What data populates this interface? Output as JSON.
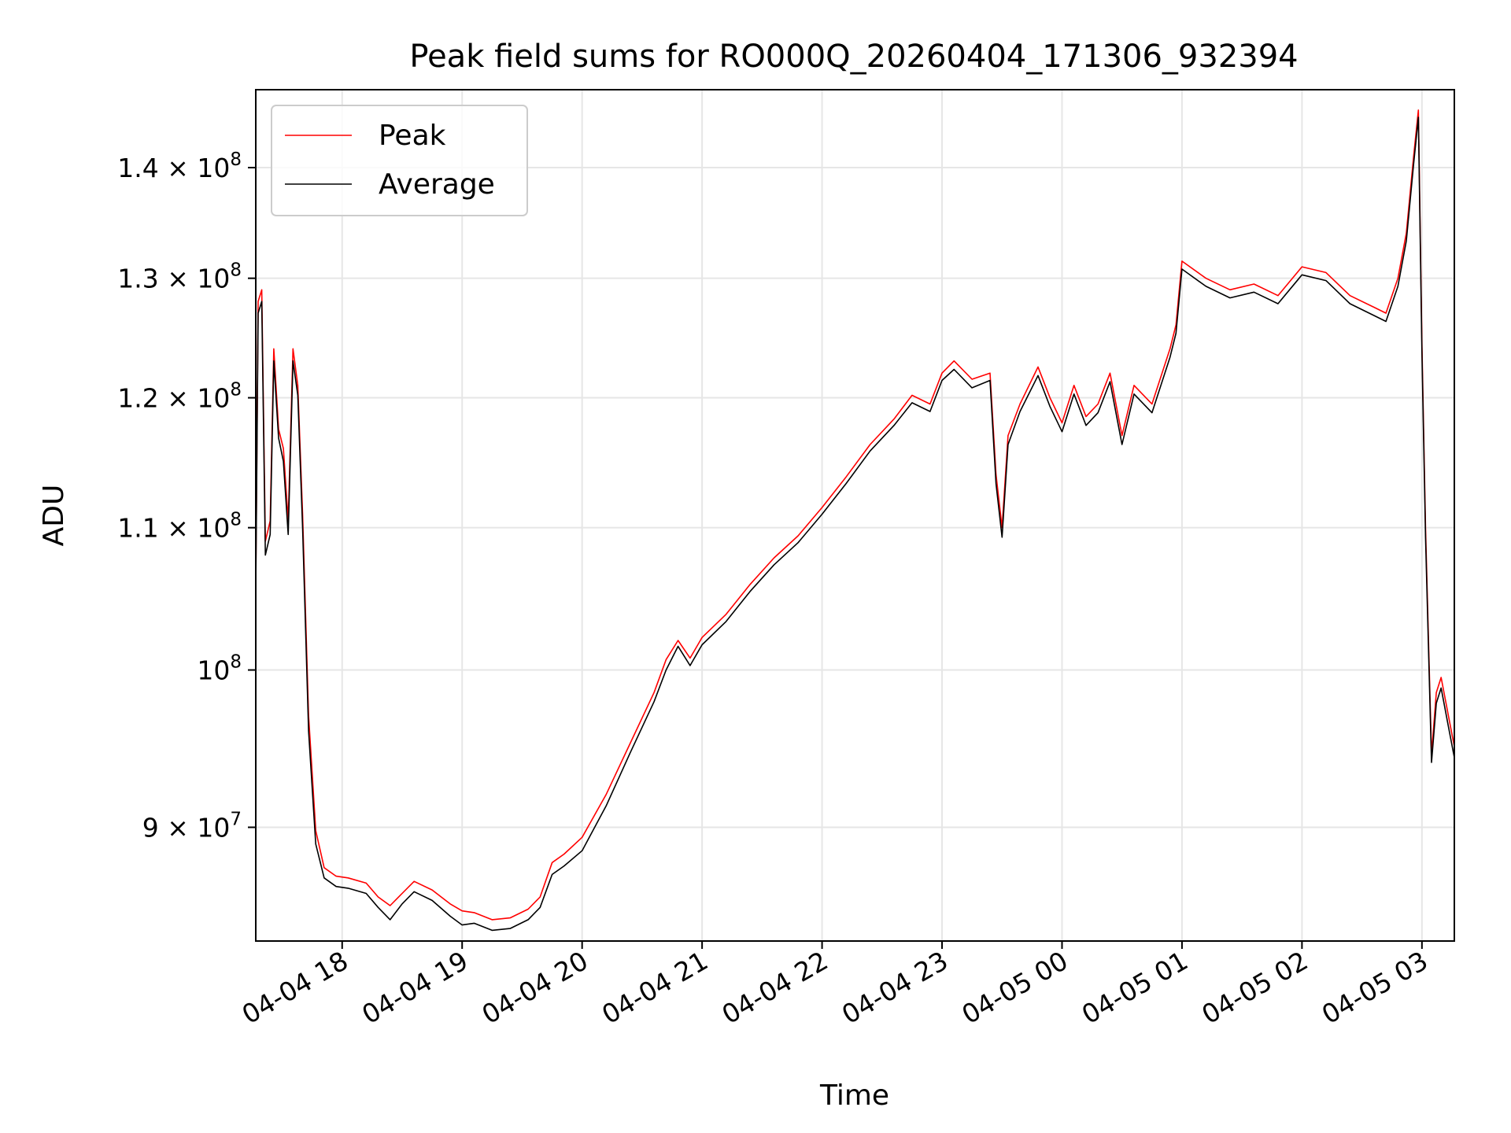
{
  "chart_data": {
    "type": "line",
    "title": "Peak field sums for RO000Q_20260404_171306_932394",
    "xlabel": "Time",
    "ylabel": "ADU",
    "yscale": "log",
    "grid": true,
    "legend_position": "upper-left",
    "x_units": "hours since 2026-04-04 00:00",
    "xlim": [
      17.28,
      27.27
    ],
    "ylim": [
      83400000,
      147500000
    ],
    "x_ticks": [
      {
        "value": 18,
        "label": "04-04 18"
      },
      {
        "value": 19,
        "label": "04-04 19"
      },
      {
        "value": 20,
        "label": "04-04 20"
      },
      {
        "value": 21,
        "label": "04-04 21"
      },
      {
        "value": 22,
        "label": "04-04 22"
      },
      {
        "value": 23,
        "label": "04-04 23"
      },
      {
        "value": 24,
        "label": "04-05 00"
      },
      {
        "value": 25,
        "label": "04-05 01"
      },
      {
        "value": 26,
        "label": "04-05 02"
      },
      {
        "value": 27,
        "label": "04-05 03"
      }
    ],
    "y_ticks": [
      {
        "value": 90000000,
        "mantissa": "9",
        "exponent": "7",
        "label": "9 × 10^7"
      },
      {
        "value": 100000000,
        "mantissa": "",
        "exponent": "8",
        "label": "10^8"
      },
      {
        "value": 110000000,
        "mantissa": "1.1",
        "exponent": "8",
        "label": "1.1 × 10^8"
      },
      {
        "value": 120000000,
        "mantissa": "1.2",
        "exponent": "8",
        "label": "1.2 × 10^8"
      },
      {
        "value": 130000000,
        "mantissa": "1.3",
        "exponent": "8",
        "label": "1.3 × 10^8"
      },
      {
        "value": 140000000,
        "mantissa": "1.4",
        "exponent": "8",
        "label": "1.4 × 10^8"
      }
    ],
    "series": [
      {
        "name": "Peak",
        "color": "#ff0000",
        "x": [
          17.28,
          17.3,
          17.33,
          17.36,
          17.4,
          17.43,
          17.47,
          17.51,
          17.55,
          17.59,
          17.63,
          17.67,
          17.72,
          17.78,
          17.85,
          17.95,
          18.05,
          18.2,
          18.3,
          18.4,
          18.5,
          18.6,
          18.75,
          18.9,
          19.0,
          19.1,
          19.25,
          19.4,
          19.55,
          19.65,
          19.75,
          19.85,
          20.0,
          20.2,
          20.4,
          20.6,
          20.7,
          20.8,
          20.9,
          21.0,
          21.2,
          21.4,
          21.6,
          21.8,
          22.0,
          22.2,
          22.4,
          22.6,
          22.75,
          22.9,
          23.0,
          23.1,
          23.25,
          23.4,
          23.45,
          23.5,
          23.55,
          23.65,
          23.8,
          23.9,
          24.0,
          24.1,
          24.2,
          24.3,
          24.4,
          24.5,
          24.6,
          24.75,
          24.9,
          24.95,
          25.0,
          25.2,
          25.4,
          25.6,
          25.8,
          26.0,
          26.2,
          26.4,
          26.6,
          26.7,
          26.8,
          26.87,
          26.93,
          26.97,
          27.0,
          27.03,
          27.08,
          27.12,
          27.16,
          27.22,
          27.27
        ],
        "values": [
          106000000,
          128000000,
          129000000,
          109000000,
          110500000,
          124000000,
          117500000,
          116000000,
          110500000,
          124000000,
          121000000,
          111000000,
          97000000,
          89800000,
          87600000,
          87100000,
          87000000,
          86700000,
          85900000,
          85400000,
          86100000,
          86800000,
          86300000,
          85500000,
          85100000,
          85000000,
          84600000,
          84700000,
          85200000,
          85900000,
          87900000,
          88400000,
          89400000,
          92000000,
          95200000,
          98500000,
          100700000,
          102000000,
          100800000,
          102200000,
          103800000,
          105900000,
          107800000,
          109400000,
          111500000,
          113800000,
          116300000,
          118300000,
          120200000,
          119500000,
          122000000,
          123000000,
          121500000,
          122000000,
          114000000,
          110000000,
          117000000,
          119500000,
          122500000,
          120000000,
          118000000,
          121000000,
          118500000,
          119500000,
          122000000,
          117000000,
          121000000,
          119500000,
          124000000,
          126000000,
          131500000,
          130000000,
          129000000,
          129500000,
          128500000,
          131000000,
          130500000,
          128500000,
          127500000,
          127000000,
          130000000,
          134000000,
          141000000,
          145500000,
          124500000,
          110000000,
          94500000,
          98500000,
          99500000,
          97000000,
          95000000
        ]
      },
      {
        "name": "Average",
        "color": "#000000",
        "x": [
          17.28,
          17.3,
          17.33,
          17.36,
          17.4,
          17.43,
          17.47,
          17.51,
          17.55,
          17.59,
          17.63,
          17.67,
          17.72,
          17.78,
          17.85,
          17.95,
          18.05,
          18.2,
          18.3,
          18.4,
          18.5,
          18.6,
          18.75,
          18.9,
          19.0,
          19.1,
          19.25,
          19.4,
          19.55,
          19.65,
          19.75,
          19.85,
          20.0,
          20.2,
          20.4,
          20.6,
          20.7,
          20.8,
          20.9,
          21.0,
          21.2,
          21.4,
          21.6,
          21.8,
          22.0,
          22.2,
          22.4,
          22.6,
          22.75,
          22.9,
          23.0,
          23.1,
          23.25,
          23.4,
          23.45,
          23.5,
          23.55,
          23.65,
          23.8,
          23.9,
          24.0,
          24.1,
          24.2,
          24.3,
          24.4,
          24.5,
          24.6,
          24.75,
          24.9,
          24.95,
          25.0,
          25.2,
          25.4,
          25.6,
          25.8,
          26.0,
          26.2,
          26.4,
          26.6,
          26.7,
          26.8,
          26.87,
          26.93,
          26.97,
          27.0,
          27.03,
          27.08,
          27.12,
          27.16,
          27.22,
          27.27
        ],
        "values": [
          105500000,
          127000000,
          128000000,
          108000000,
          109500000,
          123000000,
          116800000,
          115000000,
          109500000,
          123000000,
          120200000,
          110000000,
          96000000,
          89000000,
          87000000,
          86500000,
          86400000,
          86100000,
          85300000,
          84600000,
          85500000,
          86200000,
          85700000,
          84800000,
          84300000,
          84400000,
          84000000,
          84100000,
          84600000,
          85300000,
          87200000,
          87700000,
          88600000,
          91300000,
          94600000,
          97900000,
          100000000,
          101600000,
          100300000,
          101700000,
          103300000,
          105400000,
          107300000,
          108900000,
          111000000,
          113300000,
          115800000,
          117800000,
          119600000,
          118900000,
          121400000,
          122300000,
          120800000,
          121400000,
          113300000,
          109300000,
          116300000,
          118900000,
          121800000,
          119300000,
          117300000,
          120300000,
          117800000,
          118800000,
          121300000,
          116300000,
          120300000,
          118800000,
          123300000,
          125300000,
          130800000,
          129300000,
          128300000,
          128800000,
          127800000,
          130300000,
          129800000,
          127800000,
          126800000,
          126300000,
          129300000,
          133300000,
          140300000,
          144800000,
          123800000,
          109300000,
          94000000,
          97800000,
          98800000,
          96300000,
          94300000
        ]
      }
    ]
  }
}
